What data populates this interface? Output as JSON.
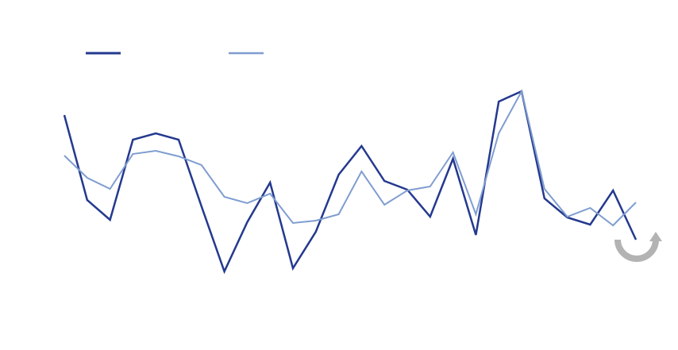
{
  "chart_data": {
    "type": "line",
    "series": [
      {
        "color": "#24398f",
        "values": [
          255,
          148,
          123,
          224,
          232,
          224,
          140,
          58,
          120,
          170,
          62,
          108,
          180,
          216,
          172,
          161,
          127,
          200,
          104,
          272,
          285,
          150,
          126,
          117,
          160,
          98
        ]
      },
      {
        "color": "#7f9dd0",
        "values": [
          204,
          176,
          162,
          206,
          210,
          203,
          192,
          152,
          144,
          156,
          119,
          122,
          130,
          184,
          142,
          160,
          165,
          208,
          130,
          232,
          285,
          162,
          127,
          138,
          116,
          145
        ]
      }
    ]
  }
}
